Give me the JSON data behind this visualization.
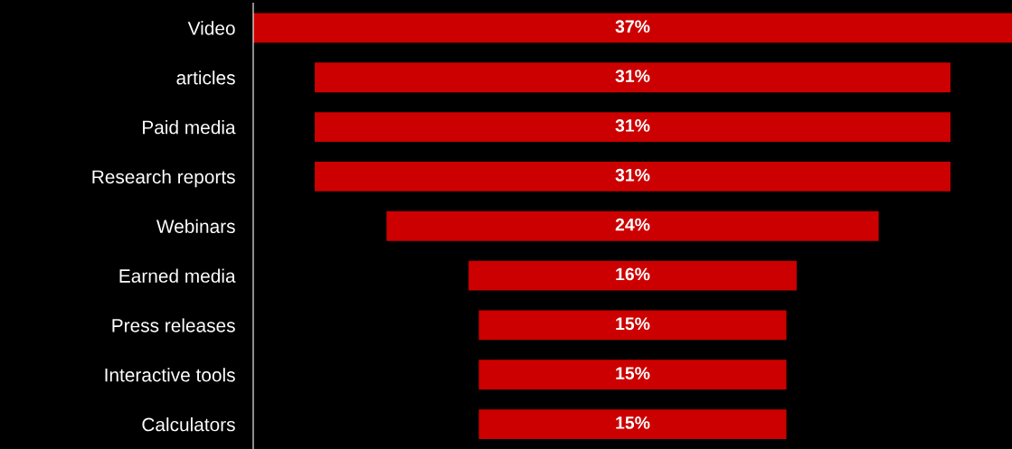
{
  "chart_data": {
    "type": "other",
    "categories": [
      "Video",
      "articles",
      "Paid media",
      "Research reports",
      "Webinars",
      "Earned media",
      "Press releases",
      "Interactive tools",
      "Calculators"
    ],
    "values": [
      37,
      31,
      31,
      31,
      24,
      16,
      15,
      15,
      15
    ],
    "value_labels": [
      "37%",
      "31%",
      "31%",
      "31%",
      "24%",
      "16%",
      "15%",
      "15%",
      "15%"
    ],
    "color": "#cc0000"
  }
}
